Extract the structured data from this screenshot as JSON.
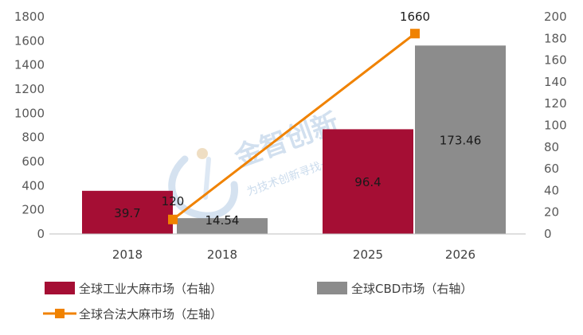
{
  "chart_data": {
    "type": "bar",
    "categories": [
      "2018",
      "2018",
      "2025",
      "2026"
    ],
    "left_axis": {
      "ylim": [
        0,
        1800
      ],
      "ticks": [
        0,
        200,
        400,
        600,
        800,
        1000,
        1200,
        1400,
        1600,
        1800
      ]
    },
    "right_axis": {
      "ylim": [
        0,
        200
      ],
      "ticks": [
        0,
        20,
        40,
        60,
        80,
        100,
        120,
        140,
        160,
        180,
        200
      ]
    },
    "series": [
      {
        "name": "全球工业大麻市场（右轴）",
        "type": "bar",
        "axis": "right",
        "color": "#A50E34",
        "points": [
          {
            "category": "2018",
            "value": 39.7,
            "label": "39.7"
          },
          {
            "category": "2025",
            "value": 96.4,
            "label": "96.4"
          }
        ]
      },
      {
        "name": "全球CBD市场（右轴）",
        "type": "bar",
        "axis": "right",
        "color": "#8C8C8C",
        "points": [
          {
            "category": "2018",
            "value": 14.54,
            "label": "14.54"
          },
          {
            "category": "2026",
            "value": 173.46,
            "label": "173.46"
          }
        ]
      },
      {
        "name": "全球合法大麻市场（左轴）",
        "type": "line",
        "axis": "left",
        "color": "#F08200",
        "points": [
          {
            "value": 120,
            "label": "120"
          },
          {
            "value": 1660,
            "label": "1660"
          }
        ]
      }
    ],
    "legend_position": "bottom",
    "grid": false
  },
  "watermark": {
    "title": "金智创新",
    "subtitle": "为技术创新寻找一个\"+\""
  }
}
